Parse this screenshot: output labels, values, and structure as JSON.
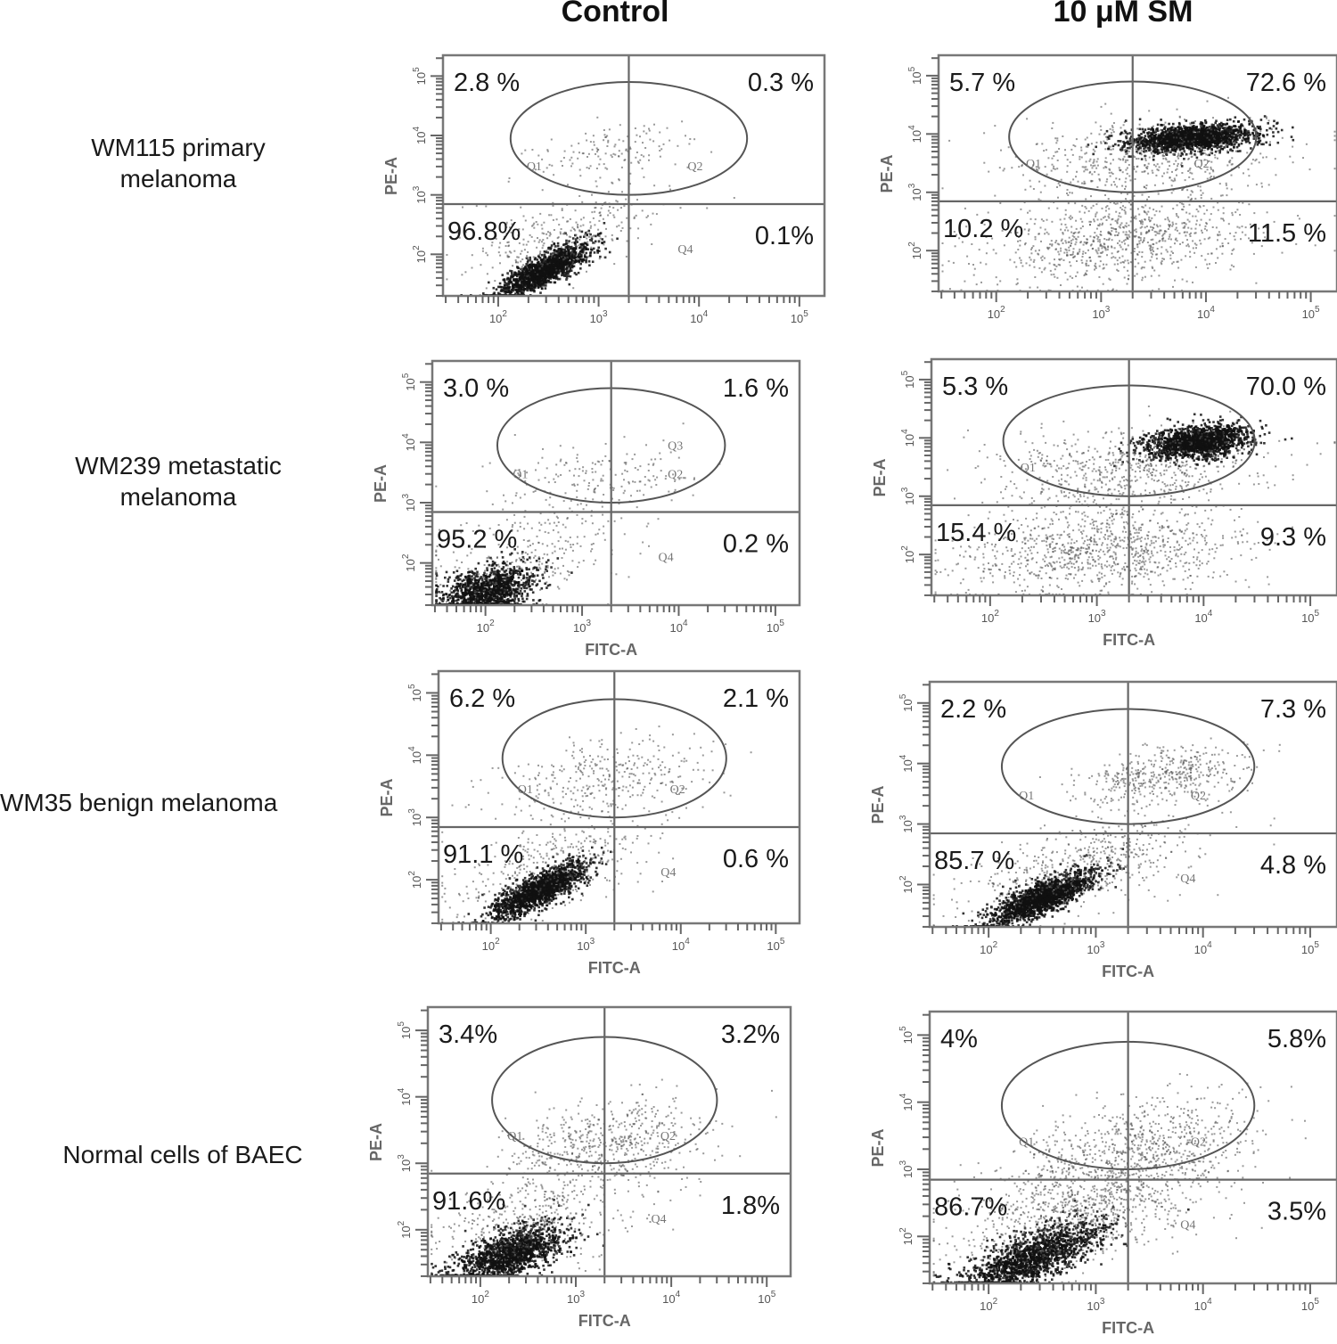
{
  "figure": {
    "columns": [
      "Control",
      "10 μM SM"
    ],
    "rows": [
      {
        "label_lines": [
          "WM115 primary",
          "melanoma"
        ]
      },
      {
        "label_lines": [
          "WM239 metastatic",
          "melanoma"
        ]
      },
      {
        "label_lines": [
          "WM35 benign melanoma"
        ]
      },
      {
        "label_lines": [
          "Normal cells of BAEC"
        ]
      }
    ]
  },
  "chart_data": [
    {
      "type": "scatter",
      "row": "WM115 primary melanoma",
      "condition": "Control",
      "xlabel": "",
      "ylabel": "PE-A",
      "x_scale": "log",
      "y_scale": "log",
      "x_ticks": [
        "10^2",
        "10^3",
        "10^4",
        "10^5"
      ],
      "y_ticks": [
        "10^2",
        "10^3",
        "10^4",
        "10^5"
      ],
      "quadrant_gate": {
        "x": 2000,
        "y": 700
      },
      "quadrants": {
        "Q1": "2.8 %",
        "Q2": "0.3 %",
        "Q3": "96.8%",
        "Q4": "0.1%"
      },
      "gate_labels": [
        "Q1",
        "Q2",
        "Q4"
      ],
      "populations": [
        {
          "cx": 2.45,
          "cy": 1.75,
          "sx": 0.22,
          "sy": 0.22,
          "rho": 0.8,
          "n": 1400
        },
        {
          "cx": 2.6,
          "cy": 2.3,
          "sx": 0.5,
          "sy": 0.4,
          "rho": 0.6,
          "n": 320
        },
        {
          "cx": 3.1,
          "cy": 3.7,
          "sx": 0.4,
          "sy": 0.25,
          "rho": 0.3,
          "n": 140
        }
      ]
    },
    {
      "type": "scatter",
      "row": "WM115 primary melanoma",
      "condition": "10 μM SM",
      "xlabel": "",
      "ylabel": "PE-A",
      "x_scale": "log",
      "y_scale": "log",
      "x_ticks": [
        "10^2",
        "10^3",
        "10^4",
        "10^5"
      ],
      "y_ticks": [
        "10^2",
        "10^3",
        "10^4",
        "10^5"
      ],
      "quadrant_gate": {
        "x": 2000,
        "y": 700
      },
      "quadrants": {
        "Q1": "5.7 %",
        "Q2": "72.6 %",
        "Q3": "10.2 %",
        "Q4": "11.5 %"
      },
      "gate_labels": [
        "Q1",
        "Q2"
      ],
      "populations": [
        {
          "cx": 3.85,
          "cy": 3.95,
          "sx": 0.3,
          "sy": 0.12,
          "rho": 0.3,
          "n": 1600
        },
        {
          "cx": 3.4,
          "cy": 3.6,
          "sx": 0.65,
          "sy": 0.35,
          "rho": 0.2,
          "n": 550
        },
        {
          "cx": 3.2,
          "cy": 2.2,
          "sx": 0.65,
          "sy": 0.4,
          "rho": 0.3,
          "n": 900
        }
      ]
    },
    {
      "type": "scatter",
      "row": "WM239 metastatic melanoma",
      "condition": "Control",
      "xlabel": "FITC-A",
      "ylabel": "PE-A",
      "x_scale": "log",
      "y_scale": "log",
      "x_ticks": [
        "10^2",
        "10^3",
        "10^4",
        "10^5"
      ],
      "y_ticks": [
        "10^2",
        "10^3",
        "10^4",
        "10^5"
      ],
      "quadrant_gate": {
        "x": 2000,
        "y": 700
      },
      "quadrants": {
        "Q1": "3.0 %",
        "Q2": "1.6 %",
        "Q3": "95.2 %",
        "Q4": "0.2 %"
      },
      "gate_labels": [
        "Q1",
        "Q2",
        "Q3",
        "Q4"
      ],
      "populations": [
        {
          "cx": 2.0,
          "cy": 1.55,
          "sx": 0.25,
          "sy": 0.22,
          "rho": 0.4,
          "n": 1200
        },
        {
          "cx": 2.4,
          "cy": 2.1,
          "sx": 0.5,
          "sy": 0.4,
          "rho": 0.4,
          "n": 300
        },
        {
          "cx": 3.2,
          "cy": 3.4,
          "sx": 0.55,
          "sy": 0.3,
          "rho": 0.2,
          "n": 190
        }
      ]
    },
    {
      "type": "scatter",
      "row": "WM239 metastatic melanoma",
      "condition": "10 μM SM",
      "xlabel": "FITC-A",
      "ylabel": "PE-A",
      "x_scale": "log",
      "y_scale": "log",
      "x_ticks": [
        "10^2",
        "10^3",
        "10^4",
        "10^5"
      ],
      "y_ticks": [
        "10^2",
        "10^3",
        "10^4",
        "10^5"
      ],
      "quadrant_gate": {
        "x": 2000,
        "y": 700
      },
      "quadrants": {
        "Q1": "5.3 %",
        "Q2": "70.0 %",
        "Q3": "15.4 %",
        "Q4": "9.3 %"
      },
      "gate_labels": [
        "Q1"
      ],
      "populations": [
        {
          "cx": 3.95,
          "cy": 3.95,
          "sx": 0.25,
          "sy": 0.15,
          "rho": 0.3,
          "n": 1500
        },
        {
          "cx": 3.3,
          "cy": 3.5,
          "sx": 0.65,
          "sy": 0.35,
          "rho": 0.2,
          "n": 600
        },
        {
          "cx": 3.0,
          "cy": 2.1,
          "sx": 0.65,
          "sy": 0.4,
          "rho": 0.2,
          "n": 1000
        }
      ]
    },
    {
      "type": "scatter",
      "row": "WM35 benign melanoma",
      "condition": "Control",
      "xlabel": "FITC-A",
      "ylabel": "PE-A",
      "x_scale": "log",
      "y_scale": "log",
      "x_ticks": [
        "10^2",
        "10^3",
        "10^4",
        "10^5"
      ],
      "y_ticks": [
        "10^2",
        "10^3",
        "10^4",
        "10^5"
      ],
      "quadrant_gate": {
        "x": 2000,
        "y": 700
      },
      "quadrants": {
        "Q1": "6.2 %",
        "Q2": "2.1 %",
        "Q3": "91.1 %",
        "Q4": "0.6 %"
      },
      "gate_labels": [
        "Q1",
        "Q2",
        "Q4"
      ],
      "populations": [
        {
          "cx": 2.5,
          "cy": 1.85,
          "sx": 0.25,
          "sy": 0.22,
          "rho": 0.8,
          "n": 1500
        },
        {
          "cx": 2.6,
          "cy": 2.2,
          "sx": 0.55,
          "sy": 0.4,
          "rho": 0.5,
          "n": 350
        },
        {
          "cx": 3.2,
          "cy": 3.6,
          "sx": 0.55,
          "sy": 0.35,
          "rho": 0.3,
          "n": 350
        }
      ]
    },
    {
      "type": "scatter",
      "row": "WM35 benign melanoma",
      "condition": "10 μM SM",
      "xlabel": "FITC-A",
      "ylabel": "PE-A",
      "x_scale": "log",
      "y_scale": "log",
      "x_ticks": [
        "10^2",
        "10^3",
        "10^4",
        "10^5"
      ],
      "y_ticks": [
        "10^2",
        "10^3",
        "10^4",
        "10^5"
      ],
      "quadrant_gate": {
        "x": 2000,
        "y": 700
      },
      "quadrants": {
        "Q1": "2.2 %",
        "Q2": "7.3 %",
        "Q3": "85.7 %",
        "Q4": "4.8 %"
      },
      "gate_labels": [
        "Q1",
        "Q2",
        "Q4"
      ],
      "populations": [
        {
          "cx": 2.5,
          "cy": 1.8,
          "sx": 0.25,
          "sy": 0.22,
          "rho": 0.8,
          "n": 1600
        },
        {
          "cx": 2.9,
          "cy": 2.3,
          "sx": 0.55,
          "sy": 0.4,
          "rho": 0.5,
          "n": 500
        },
        {
          "cx": 3.6,
          "cy": 3.8,
          "sx": 0.4,
          "sy": 0.25,
          "rho": 0.4,
          "n": 450
        }
      ]
    },
    {
      "type": "scatter",
      "row": "Normal cells of BAEC",
      "condition": "Control",
      "xlabel": "FITC-A",
      "ylabel": "PE-A",
      "x_scale": "log",
      "y_scale": "log",
      "x_ticks": [
        "10^2",
        "10^3",
        "10^4",
        "10^5"
      ],
      "y_ticks": [
        "10^2",
        "10^3",
        "10^4",
        "10^5"
      ],
      "quadrant_gate": {
        "x": 2000,
        "y": 700
      },
      "quadrants": {
        "Q1": "3.4%",
        "Q2": "3.2%",
        "Q3": "91.6%",
        "Q4": "1.8%"
      },
      "gate_labels": [
        "Q1",
        "Q2",
        "Q4"
      ],
      "populations": [
        {
          "cx": 2.3,
          "cy": 1.65,
          "sx": 0.3,
          "sy": 0.22,
          "rho": 0.6,
          "n": 1400
        },
        {
          "cx": 2.6,
          "cy": 2.2,
          "sx": 0.55,
          "sy": 0.4,
          "rho": 0.4,
          "n": 450
        },
        {
          "cx": 3.3,
          "cy": 3.3,
          "sx": 0.55,
          "sy": 0.35,
          "rho": 0.3,
          "n": 550
        }
      ]
    },
    {
      "type": "scatter",
      "row": "Normal cells of BAEC",
      "condition": "10 μM SM",
      "xlabel": "FITC-A",
      "ylabel": "PE-A",
      "x_scale": "log",
      "y_scale": "log",
      "x_ticks": [
        "10^2",
        "10^3",
        "10^4",
        "10^5"
      ],
      "y_ticks": [
        "10^2",
        "10^3",
        "10^4",
        "10^5"
      ],
      "quadrant_gate": {
        "x": 2000,
        "y": 700
      },
      "quadrants": {
        "Q1": "4%",
        "Q2": "5.8%",
        "Q3": "86.7%",
        "Q4": "3.5%"
      },
      "gate_labels": [
        "Q1",
        "Q2",
        "Q4"
      ],
      "populations": [
        {
          "cx": 2.4,
          "cy": 1.7,
          "sx": 0.32,
          "sy": 0.25,
          "rho": 0.7,
          "n": 1500
        },
        {
          "cx": 2.9,
          "cy": 2.5,
          "sx": 0.6,
          "sy": 0.5,
          "rho": 0.5,
          "n": 1100
        },
        {
          "cx": 3.5,
          "cy": 3.4,
          "sx": 0.5,
          "sy": 0.35,
          "rho": 0.3,
          "n": 550
        }
      ]
    }
  ]
}
